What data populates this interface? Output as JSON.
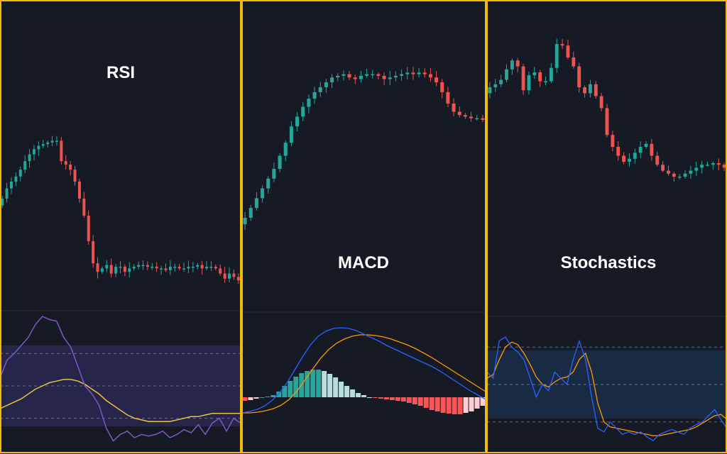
{
  "colors": {
    "background": "#161a25",
    "frame": "#f0b90b",
    "bull": "#26a69a",
    "bear": "#ef5350",
    "divider": "#2a2e39",
    "rsi_band": "#4a3d8f",
    "rsi_line": "#7e57c2",
    "rsi_ma": "#e5c441",
    "macd_line": "#2962ff",
    "signal_line": "#ff9800",
    "hist_pos_strong": "#26a69a",
    "hist_pos_weak": "#b2dfdb",
    "hist_neg_strong": "#ff5252",
    "hist_neg_weak": "#ffcdd2",
    "stoch_band": "#1e3a5f",
    "stoch_k": "#2962ff",
    "stoch_d": "#ff9800",
    "guide": "#8a8f9c",
    "label": "#ffffff"
  },
  "chart_data": [
    {
      "type": "candlestick",
      "title": "RSI",
      "price_range": [
        0,
        100
      ],
      "close": [
        50,
        56,
        60,
        63,
        67,
        72,
        76,
        79,
        81,
        82,
        83,
        84,
        84,
        72,
        70,
        67,
        60,
        50,
        40,
        25,
        12,
        7,
        9,
        11,
        6,
        10,
        10,
        7,
        9,
        10,
        11,
        11,
        10,
        10,
        9,
        9,
        8,
        10,
        10,
        9,
        9,
        10,
        10,
        11,
        9,
        10,
        10,
        9,
        6,
        3,
        6,
        4,
        2
      ],
      "indicator": {
        "type": "line",
        "name": "RSI",
        "range": [
          0,
          100
        ],
        "band": [
          30,
          70
        ],
        "guides": [
          30,
          50,
          70
        ],
        "rsi": [
          55,
          66,
          70,
          75,
          80,
          88,
          93,
          91,
          90,
          80,
          74,
          62,
          50,
          45,
          38,
          24,
          16,
          20,
          22,
          18,
          20,
          19,
          20,
          22,
          18,
          20,
          23,
          21,
          26,
          20,
          27,
          30,
          22,
          30,
          27
        ],
        "ma": [
          36,
          38,
          40,
          42,
          45,
          48,
          50,
          52,
          53,
          54,
          54,
          53,
          51,
          48,
          45,
          41,
          38,
          35,
          32,
          30,
          29,
          28,
          28,
          28,
          28,
          29,
          30,
          31,
          31,
          32,
          33,
          33,
          33,
          33,
          33
        ]
      }
    },
    {
      "type": "candlestick",
      "title": "MACD",
      "price_range": [
        0,
        100
      ],
      "close": [
        10,
        16,
        22,
        28,
        34,
        40,
        48,
        56,
        66,
        72,
        78,
        83,
        87,
        90,
        93,
        96,
        97,
        98,
        96,
        95,
        97,
        98,
        98,
        97,
        95,
        96,
        97,
        98,
        99,
        98,
        99,
        98,
        96,
        93,
        87,
        80,
        75,
        73,
        72,
        71,
        71,
        70
      ],
      "indicator": {
        "type": "histogram+lines",
        "name": "MACD",
        "range": [
          -30,
          100
        ],
        "histogram": [
          -5,
          -4,
          -2,
          0,
          1,
          3,
          8,
          16,
          23,
          29,
          34,
          37,
          39,
          39,
          37,
          33,
          28,
          22,
          16,
          11,
          6,
          3,
          0,
          -1,
          -2,
          -3,
          -4,
          -5,
          -6,
          -8,
          -10,
          -12,
          -15,
          -18,
          -20,
          -22,
          -23,
          -24,
          -24,
          -22,
          -20,
          -16,
          -12
        ],
        "macd": [
          -22,
          -20,
          -17,
          -12,
          -4,
          7,
          22,
          40,
          58,
          74,
          86,
          93,
          97,
          98,
          97,
          94,
          89,
          84,
          79,
          73,
          68,
          63,
          58,
          53,
          48,
          43,
          37,
          30,
          23,
          16,
          9,
          3,
          -3
        ],
        "signal": [
          -22,
          -22,
          -21,
          -19,
          -16,
          -11,
          -3,
          9,
          24,
          40,
          55,
          67,
          76,
          82,
          86,
          88,
          88,
          87,
          85,
          82,
          78,
          74,
          69,
          63,
          57,
          50,
          43,
          36,
          29,
          22,
          15,
          8
        ]
      }
    },
    {
      "type": "candlestick",
      "title": "Stochastics",
      "price_range": [
        0,
        100
      ],
      "close": [
        70,
        72,
        75,
        82,
        88,
        84,
        68,
        78,
        80,
        74,
        74,
        83,
        99,
        98,
        90,
        84,
        70,
        66,
        72,
        64,
        56,
        38,
        30,
        24,
        20,
        22,
        26,
        30,
        32,
        24,
        18,
        14,
        12,
        10,
        10,
        12,
        14,
        16,
        18,
        18,
        19,
        18,
        16
      ]
    }
  ]
}
